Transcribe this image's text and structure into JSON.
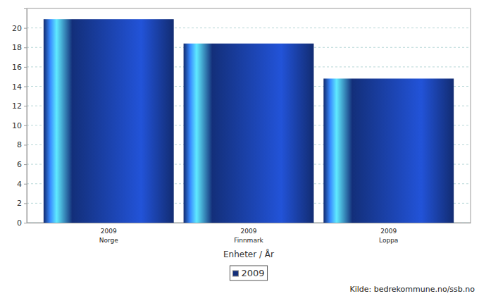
{
  "chart_data": {
    "type": "bar",
    "categories": [
      "2009\nNorge",
      "2009\nFinnmark",
      "2009\nLoppa"
    ],
    "series": [
      {
        "name": "2009",
        "color": "#132f7a",
        "values": [
          20.9,
          18.4,
          14.8
        ]
      }
    ],
    "ylim": [
      0,
      22
    ],
    "yticks": [
      0,
      2,
      4,
      6,
      8,
      10,
      12,
      14,
      16,
      18,
      20
    ],
    "grid": true,
    "legend": "bottom",
    "x_label": "Enheter / År",
    "annotations": [
      "Kilde: bedrekommune.no/ssb.no"
    ]
  }
}
